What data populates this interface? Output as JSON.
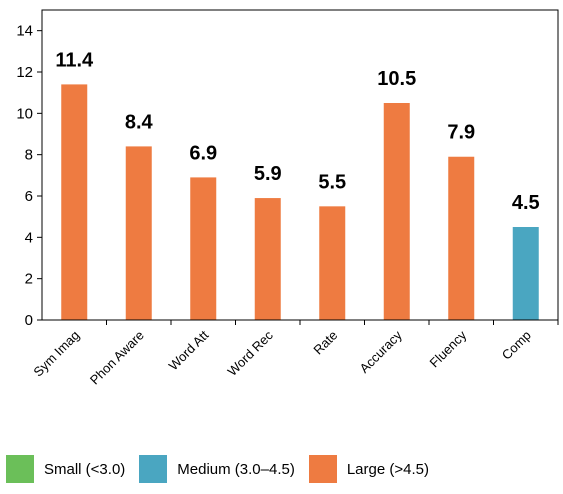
{
  "chart_data": {
    "type": "bar",
    "categories": [
      "Sym Imag",
      "Phon Aware",
      "Word Att",
      "Word Rec",
      "Rate",
      "Accuracy",
      "Fluency",
      "Comp"
    ],
    "values": [
      11.4,
      8.4,
      6.9,
      5.9,
      5.5,
      10.5,
      7.9,
      4.5
    ],
    "data_labels": [
      "11.4",
      "8.4",
      "6.9",
      "5.9",
      "5.5",
      "10.5",
      "7.9",
      "4.5"
    ],
    "bar_groups": [
      "Large",
      "Large",
      "Large",
      "Large",
      "Large",
      "Large",
      "Large",
      "Medium"
    ],
    "ylim": [
      0,
      15
    ],
    "yticks": [
      0,
      2,
      4,
      6,
      8,
      10,
      12,
      14
    ],
    "grid": false,
    "title": "",
    "xlabel": "",
    "ylabel": "",
    "legend_position": "bottom",
    "legend": [
      {
        "key": "Small",
        "label": "Small (<3.0)",
        "color": "#6bbf59"
      },
      {
        "key": "Medium",
        "label": "Medium (3.0–4.5)",
        "color": "#4aa6c1"
      },
      {
        "key": "Large",
        "label": "Large (>4.5)",
        "color": "#ee7b41"
      }
    ]
  }
}
